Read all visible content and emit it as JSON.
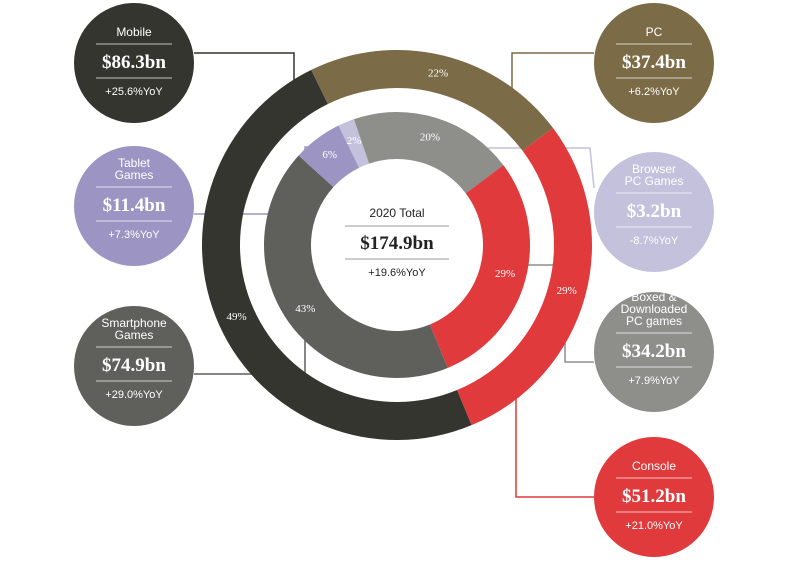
{
  "chart_data": {
    "type": "pie",
    "center": {
      "title": "2020 Total",
      "value": "$174.9bn",
      "yoy": "+19.6%YoY"
    },
    "outer": [
      {
        "name": "Mobile",
        "share": 49,
        "share_label": "49%",
        "value": "$86.3bn",
        "yoy": "+25.6%YoY",
        "color": "#34352f"
      },
      {
        "name": "PC",
        "share": 22,
        "share_label": "22%",
        "value": "$37.4bn",
        "yoy": "+6.2%YoY",
        "color": "#7b6b46"
      },
      {
        "name": "Console",
        "share": 29,
        "share_label": "29%",
        "value": "$51.2bn",
        "yoy": "+21.0%YoY",
        "color": "#e03a3c"
      }
    ],
    "inner": [
      {
        "name": "Smartphone Games",
        "share": 43,
        "share_label": "43%",
        "value": "$74.9bn",
        "yoy": "+29.0%YoY",
        "color": "#5f5f5b"
      },
      {
        "name": "Tablet Games",
        "share": 6,
        "share_label": "6%",
        "value": "$11.4bn",
        "yoy": "+7.3%YoY",
        "color": "#9c95c3"
      },
      {
        "name": "Browser PC Games",
        "share": 2,
        "share_label": "2%",
        "value": "$3.2bn",
        "yoy": "-8.7%YoY",
        "color": "#c3c1dc"
      },
      {
        "name": "Boxed & Downloaded PC games",
        "share": 20,
        "share_label": "20%",
        "value": "$34.2bn",
        "yoy": "+7.9%YoY",
        "color": "#8e8e8b"
      },
      {
        "name": "Console",
        "share": 29,
        "share_label": "29%",
        "value": "$51.2bn",
        "yoy": "+21.0%YoY",
        "color": "#e03a3c"
      }
    ],
    "callouts": [
      {
        "key": "mobile",
        "title_lines": [
          "Mobile"
        ],
        "value": "$86.3bn",
        "yoy": "+25.6%YoY",
        "color": "#34352f"
      },
      {
        "key": "tablet",
        "title_lines": [
          "Tablet",
          "Games"
        ],
        "value": "$11.4bn",
        "yoy": "+7.3%YoY",
        "color": "#9c95c3"
      },
      {
        "key": "smartphone",
        "title_lines": [
          "Smartphone",
          "Games"
        ],
        "value": "$74.9bn",
        "yoy": "+29.0%YoY",
        "color": "#5f5f5b"
      },
      {
        "key": "pc",
        "title_lines": [
          "PC"
        ],
        "value": "$37.4bn",
        "yoy": "+6.2%YoY",
        "color": "#7b6b46"
      },
      {
        "key": "browser",
        "title_lines": [
          "Browser",
          "PC Games"
        ],
        "value": "$3.2bn",
        "yoy": "-8.7%YoY",
        "color": "#c3c1dc"
      },
      {
        "key": "boxed",
        "title_lines": [
          "Boxed &",
          "Downloaded",
          "PC games"
        ],
        "value": "$34.2bn",
        "yoy": "+7.9%YoY",
        "color": "#8e8e8b"
      },
      {
        "key": "console",
        "title_lines": [
          "Console"
        ],
        "value": "$51.2bn",
        "yoy": "+21.0%YoY",
        "color": "#e03a3c"
      }
    ]
  }
}
